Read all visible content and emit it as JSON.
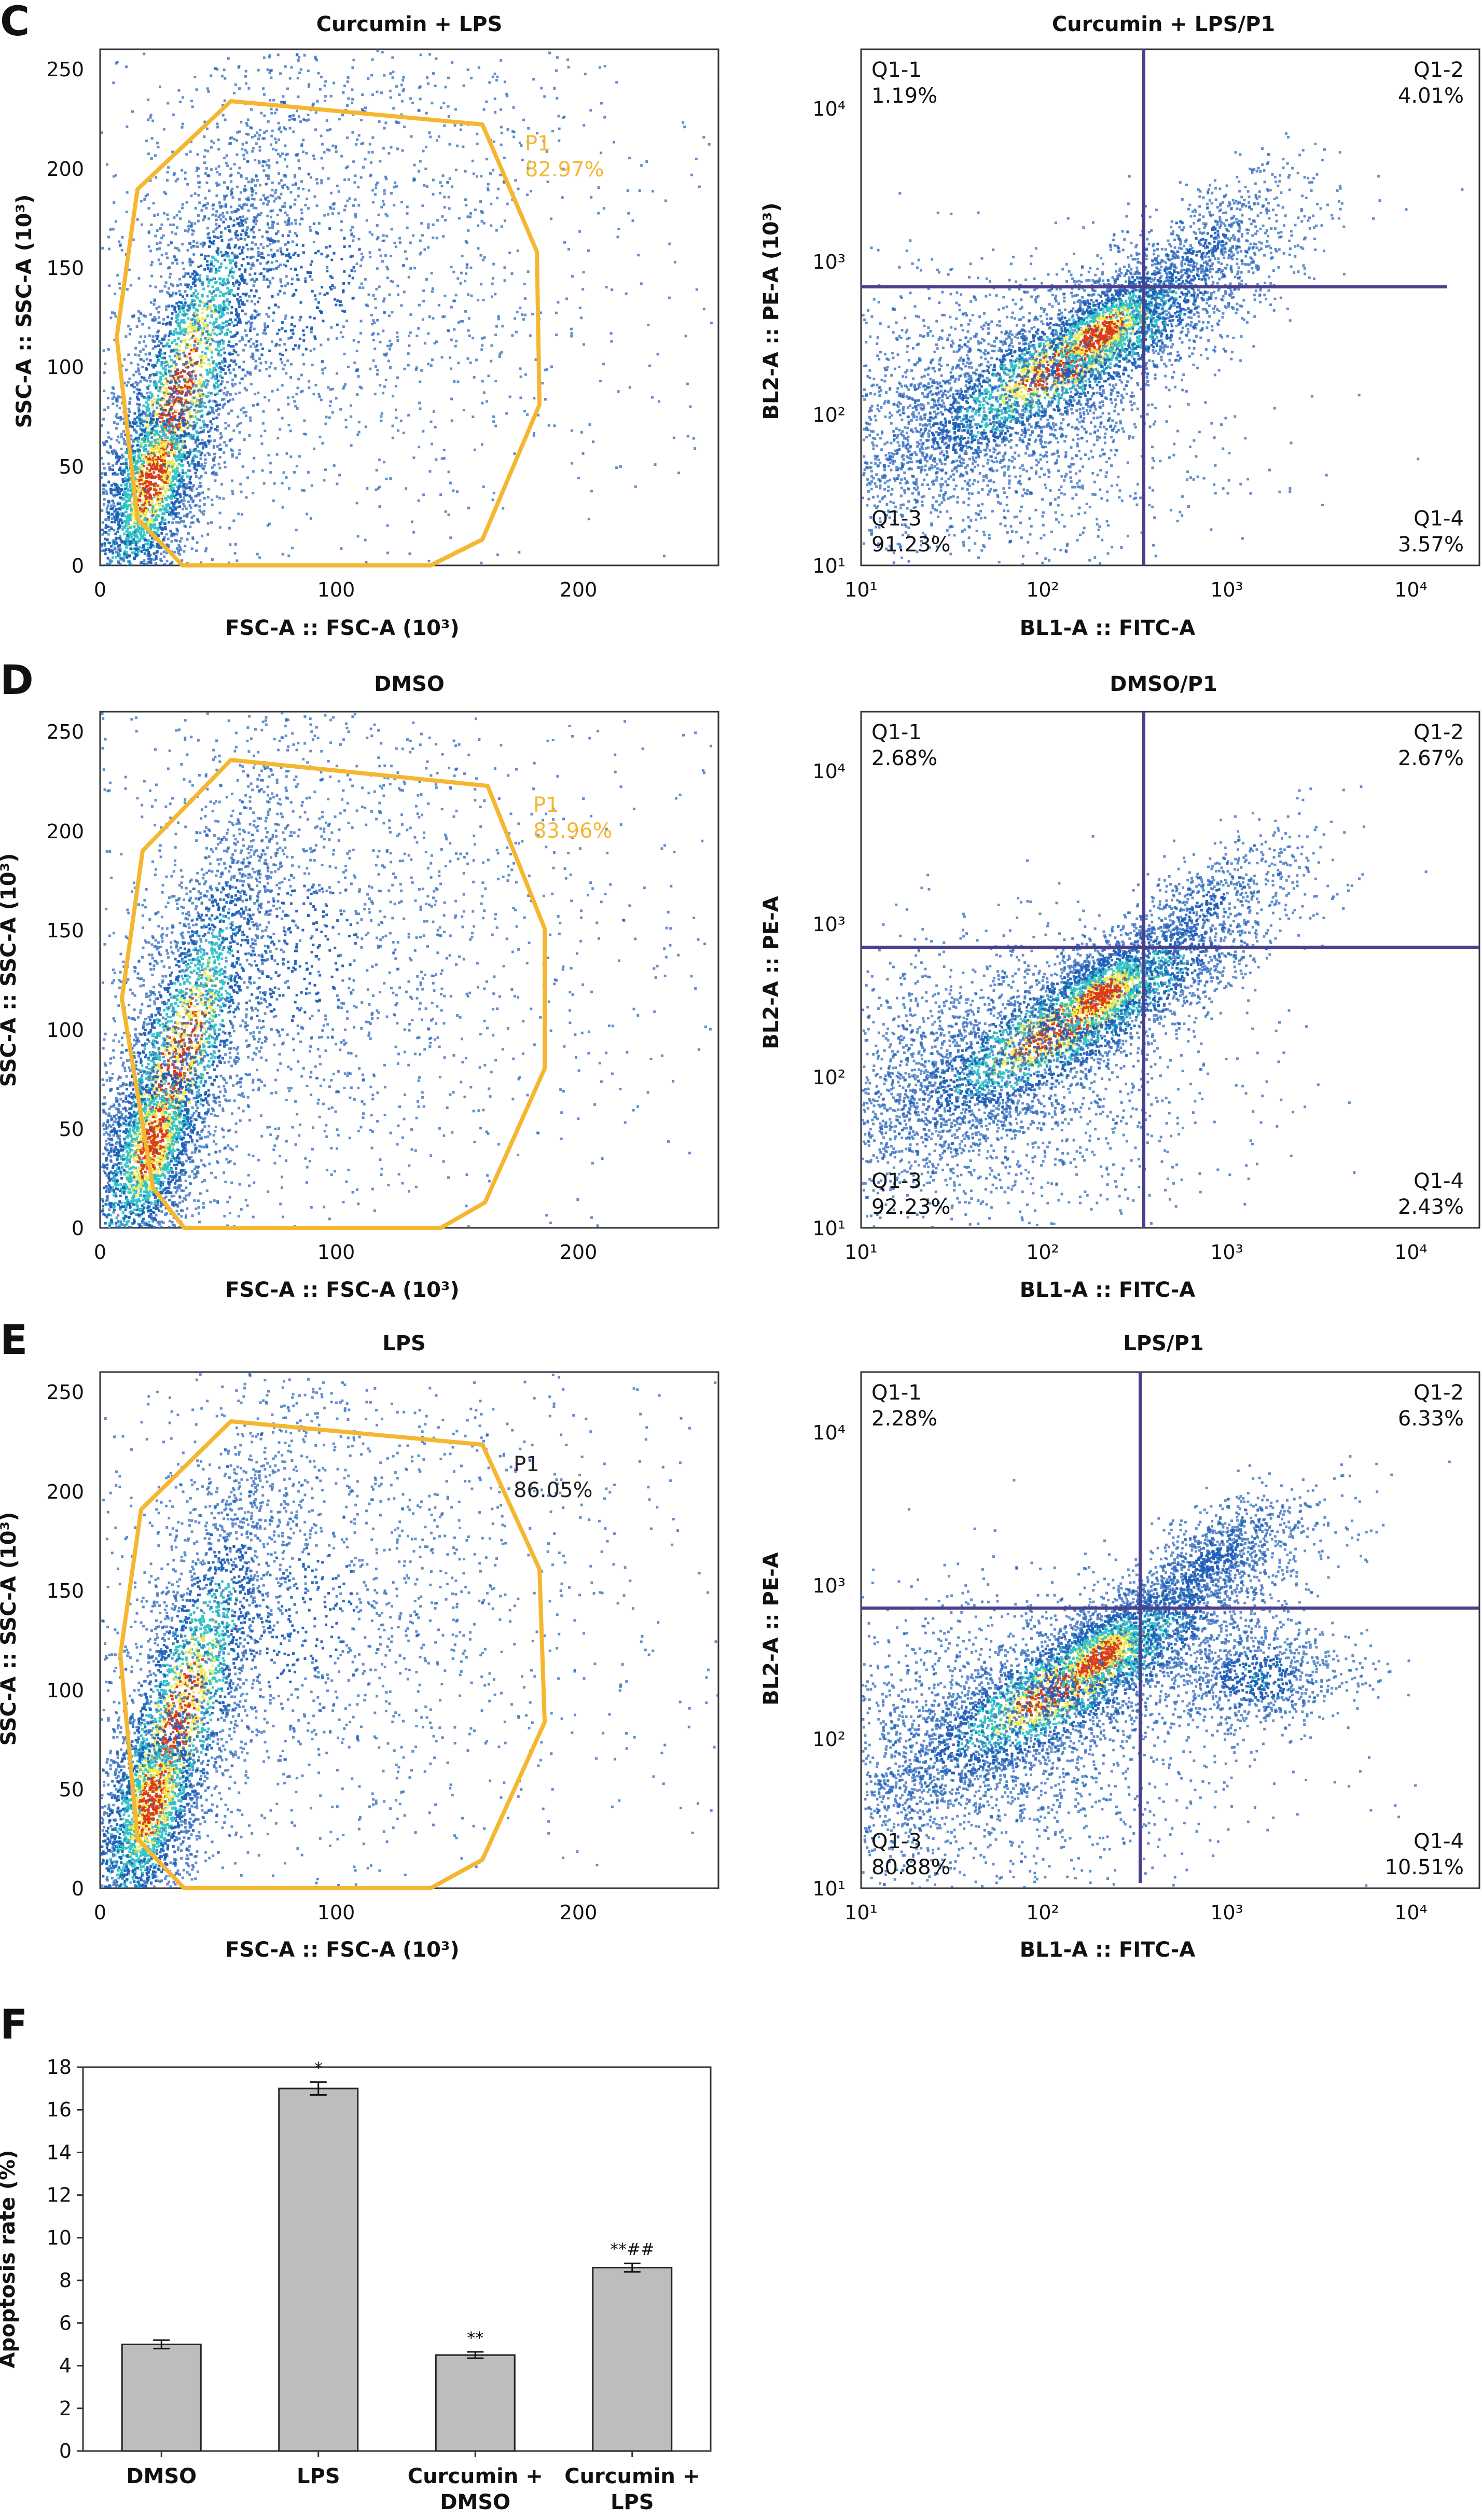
{
  "figure": {
    "panel_labels": [
      "C",
      "D",
      "E",
      "F"
    ]
  },
  "colors": {
    "gate": "#F5B731",
    "quadrant_line": "#4B3F8C",
    "axis": "#333333",
    "bar_fill": "#BDBDBD",
    "bar_stroke": "#222222",
    "density_low": "#1F5FB8",
    "density_mid": "#2FC3C8",
    "density_high": "#F2E94E",
    "density_peak": "#D93A1A"
  },
  "chart_data": [
    {
      "id": "C-left",
      "type": "scatter",
      "title": "Curcumin + LPS",
      "xlabel": "FSC-A :: FSC-A (10³)",
      "ylabel": "SSC-A :: SSC-A (10³)",
      "xlim": [
        0,
        260
      ],
      "ylim": [
        0,
        260
      ],
      "xticks": [
        "0",
        "100",
        "200"
      ],
      "yticks": [
        "0",
        "50",
        "100",
        "150",
        "200",
        "250"
      ],
      "gate": {
        "name": "P1",
        "percent": "82.97%"
      },
      "grid": false
    },
    {
      "id": "C-right",
      "type": "scatter",
      "scale": "log",
      "title": "Curcumin + LPS/P1",
      "xlabel": "BL1-A :: FITC-A",
      "ylabel": "BL2-A :: PE-A (10³)",
      "xticks": [
        "10¹",
        "10²",
        "10³",
        "10⁴"
      ],
      "yticks": [
        "10¹",
        "10²",
        "10³",
        "10⁴"
      ],
      "quadrants": [
        {
          "name": "Q1-1",
          "value": "1.19%"
        },
        {
          "name": "Q1-2",
          "value": "4.01%"
        },
        {
          "name": "Q1-3",
          "value": "91.23%"
        },
        {
          "name": "Q1-4",
          "value": "3.57%"
        }
      ],
      "grid": false
    },
    {
      "id": "D-left",
      "type": "scatter",
      "title": "DMSO",
      "xlabel": "FSC-A :: FSC-A (10³)",
      "ylabel": "SSC-A :: SSC-A (10³)",
      "xlim": [
        0,
        260
      ],
      "ylim": [
        0,
        260
      ],
      "xticks": [
        "0",
        "100",
        "200"
      ],
      "yticks": [
        "0",
        "50",
        "100",
        "150",
        "200",
        "250"
      ],
      "gate": {
        "name": "P1",
        "percent": "83.96%"
      },
      "grid": false
    },
    {
      "id": "D-right",
      "type": "scatter",
      "scale": "log",
      "title": "DMSO/P1",
      "xlabel": "BL1-A :: FITC-A",
      "ylabel": "BL2-A :: PE-A",
      "xticks": [
        "10¹",
        "10²",
        "10³",
        "10⁴"
      ],
      "yticks": [
        "10¹",
        "10²",
        "10³",
        "10⁴"
      ],
      "quadrants": [
        {
          "name": "Q1-1",
          "value": "2.68%"
        },
        {
          "name": "Q1-2",
          "value": "2.67%"
        },
        {
          "name": "Q1-3",
          "value": "92.23%"
        },
        {
          "name": "Q1-4",
          "value": "2.43%"
        }
      ],
      "grid": false
    },
    {
      "id": "E-left",
      "type": "scatter",
      "title": "LPS",
      "xlabel": "FSC-A :: FSC-A (10³)",
      "ylabel": "SSC-A :: SSC-A (10³)",
      "xlim": [
        0,
        260
      ],
      "ylim": [
        0,
        260
      ],
      "xticks": [
        "0",
        "100",
        "200"
      ],
      "yticks": [
        "0",
        "50",
        "100",
        "150",
        "200",
        "250"
      ],
      "gate": {
        "name": "P1",
        "percent": "86.05%"
      },
      "grid": false
    },
    {
      "id": "E-right",
      "type": "scatter",
      "scale": "log",
      "title": "LPS/P1",
      "xlabel": "BL1-A :: FITC-A",
      "ylabel": "BL2-A :: PE-A",
      "xticks": [
        "10¹",
        "10²",
        "10³",
        "10⁴"
      ],
      "yticks": [
        "10¹",
        "10²",
        "10³",
        "10⁴"
      ],
      "quadrants": [
        {
          "name": "Q1-1",
          "value": "2.28%"
        },
        {
          "name": "Q1-2",
          "value": "6.33%"
        },
        {
          "name": "Q1-3",
          "value": "80.88%"
        },
        {
          "name": "Q1-4",
          "value": "10.51%"
        }
      ],
      "grid": false
    },
    {
      "id": "F",
      "type": "bar",
      "title": "",
      "xlabel": "",
      "ylabel": "Apoptosis rate (%)",
      "ylim": [
        0,
        18
      ],
      "yticks": [
        "0",
        "2",
        "4",
        "6",
        "8",
        "10",
        "12",
        "14",
        "16",
        "18"
      ],
      "categories": [
        "DMSO",
        "LPS",
        "Curcumin + DMSO",
        "Curcumin + LPS"
      ],
      "category_lines": [
        [
          "DMSO"
        ],
        [
          "LPS"
        ],
        [
          "Curcumin +",
          "DMSO"
        ],
        [
          "Curcumin +",
          "LPS"
        ]
      ],
      "values": [
        5.0,
        17.0,
        4.5,
        8.6
      ],
      "errors": [
        0.2,
        0.3,
        0.15,
        0.2
      ],
      "annotations": [
        "",
        "*",
        "**",
        "**##"
      ],
      "grid": false
    }
  ]
}
